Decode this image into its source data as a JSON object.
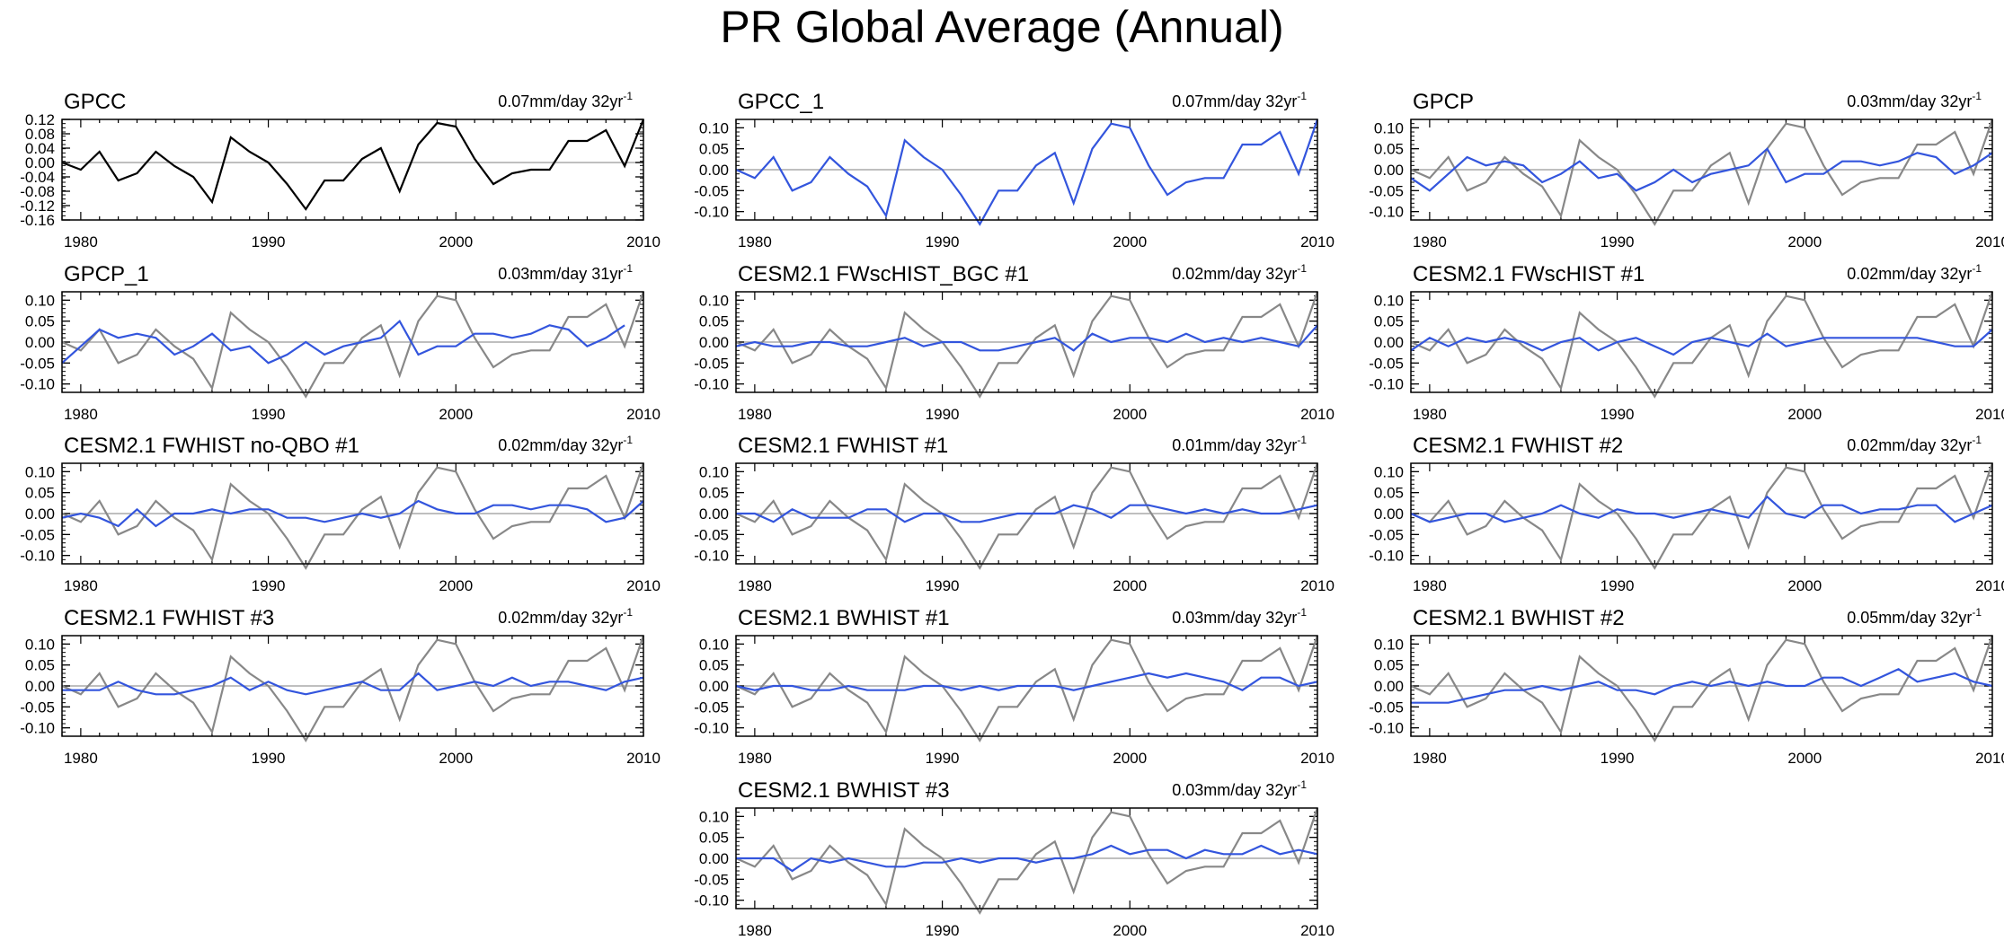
{
  "title": "PR Global Average (Annual)",
  "colors": {
    "reference": "#888888",
    "model": "#3355dd",
    "gpcc": "#000000",
    "zero_line": "#aaaaaa"
  },
  "chart_data": {
    "type": "line",
    "years": [
      1979,
      1980,
      1981,
      1982,
      1983,
      1984,
      1985,
      1986,
      1987,
      1988,
      1989,
      1990,
      1991,
      1992,
      1993,
      1994,
      1995,
      1996,
      1997,
      1998,
      1999,
      2000,
      2001,
      2002,
      2003,
      2004,
      2005,
      2006,
      2007,
      2008,
      2009,
      2010
    ],
    "xticks": [
      1980,
      1990,
      2000,
      2010
    ],
    "xlim": [
      1979,
      2010
    ],
    "reference_series": {
      "name": "GPCC",
      "values": [
        0.0,
        -0.02,
        0.03,
        -0.05,
        -0.03,
        0.03,
        -0.01,
        -0.04,
        -0.11,
        0.07,
        0.03,
        0.0,
        -0.06,
        -0.13,
        -0.05,
        -0.05,
        0.01,
        0.04,
        -0.08,
        0.05,
        0.11,
        0.1,
        0.01,
        -0.06,
        -0.03,
        -0.02,
        -0.02,
        0.06,
        0.06,
        0.09,
        -0.01,
        0.12
      ]
    },
    "panels": [
      {
        "name": "GPCC",
        "trend": "0.07mm/day 32yr",
        "trend_exp": "-1",
        "ylim": [
          -0.16,
          0.12
        ],
        "yticks": [
          "0.12",
          "0.08",
          "0.04",
          "0.00",
          "-0.04",
          "-0.08",
          "-0.12",
          "-0.16"
        ],
        "show_reference": false,
        "series_color": "gpcc",
        "values": [
          0.0,
          -0.02,
          0.03,
          -0.05,
          -0.03,
          0.03,
          -0.01,
          -0.04,
          -0.11,
          0.07,
          0.03,
          0.0,
          -0.06,
          -0.13,
          -0.05,
          -0.05,
          0.01,
          0.04,
          -0.08,
          0.05,
          0.11,
          0.1,
          0.01,
          -0.06,
          -0.03,
          -0.02,
          -0.02,
          0.06,
          0.06,
          0.09,
          -0.01,
          0.12
        ]
      },
      {
        "name": "GPCC_1",
        "trend": "0.07mm/day 32yr",
        "trend_exp": "-1",
        "ylim": [
          -0.12,
          0.12
        ],
        "yticks": [
          "0.10",
          "0.05",
          "0.00",
          "-0.05",
          "-0.10"
        ],
        "show_reference": false,
        "series_color": "model",
        "values": [
          0.0,
          -0.02,
          0.03,
          -0.05,
          -0.03,
          0.03,
          -0.01,
          -0.04,
          -0.11,
          0.07,
          0.03,
          0.0,
          -0.06,
          -0.13,
          -0.05,
          -0.05,
          0.01,
          0.04,
          -0.08,
          0.05,
          0.11,
          0.1,
          0.01,
          -0.06,
          -0.03,
          -0.02,
          -0.02,
          0.06,
          0.06,
          0.09,
          -0.01,
          0.12
        ]
      },
      {
        "name": "GPCP",
        "trend": "0.03mm/day 32yr",
        "trend_exp": "-1",
        "ylim": [
          -0.12,
          0.12
        ],
        "yticks": [
          "0.10",
          "0.05",
          "0.00",
          "-0.05",
          "-0.10"
        ],
        "show_reference": true,
        "series_color": "model",
        "values": [
          -0.02,
          -0.05,
          -0.01,
          0.03,
          0.01,
          0.02,
          0.01,
          -0.03,
          -0.01,
          0.02,
          -0.02,
          -0.01,
          -0.05,
          -0.03,
          0.0,
          -0.03,
          -0.01,
          0.0,
          0.01,
          0.05,
          -0.03,
          -0.01,
          -0.01,
          0.02,
          0.02,
          0.01,
          0.02,
          0.04,
          0.03,
          -0.01,
          0.01,
          0.04
        ]
      },
      {
        "name": "GPCP_1",
        "trend": "0.03mm/day 31yr",
        "trend_exp": "-1",
        "ylim": [
          -0.12,
          0.12
        ],
        "yticks": [
          "0.10",
          "0.05",
          "0.00",
          "-0.05",
          "-0.10"
        ],
        "show_reference": true,
        "series_color": "model",
        "values": [
          -0.05,
          -0.01,
          0.03,
          0.01,
          0.02,
          0.01,
          -0.03,
          -0.01,
          0.02,
          -0.02,
          -0.01,
          -0.05,
          -0.03,
          0.0,
          -0.03,
          -0.01,
          0.0,
          0.01,
          0.05,
          -0.03,
          -0.01,
          -0.01,
          0.02,
          0.02,
          0.01,
          0.02,
          0.04,
          0.03,
          -0.01,
          0.01,
          0.04
        ]
      },
      {
        "name": "CESM2.1 FWscHIST_BGC #1",
        "trend": "0.02mm/day 32yr",
        "trend_exp": "-1",
        "ylim": [
          -0.12,
          0.12
        ],
        "yticks": [
          "0.10",
          "0.05",
          "0.00",
          "-0.05",
          "-0.10"
        ],
        "show_reference": true,
        "series_color": "model",
        "values": [
          -0.01,
          0.0,
          -0.01,
          -0.01,
          0.0,
          0.0,
          -0.01,
          -0.01,
          0.0,
          0.01,
          -0.01,
          0.0,
          0.0,
          -0.02,
          -0.02,
          -0.01,
          0.0,
          0.01,
          -0.02,
          0.02,
          0.0,
          0.01,
          0.01,
          0.0,
          0.02,
          0.0,
          0.01,
          0.0,
          0.01,
          0.0,
          -0.01,
          0.04
        ]
      },
      {
        "name": "CESM2.1 FWscHIST #1",
        "trend": "0.02mm/day 32yr",
        "trend_exp": "-1",
        "ylim": [
          -0.12,
          0.12
        ],
        "yticks": [
          "0.10",
          "0.05",
          "0.00",
          "-0.05",
          "-0.10"
        ],
        "show_reference": true,
        "series_color": "model",
        "values": [
          -0.02,
          0.01,
          -0.01,
          0.01,
          0.0,
          0.01,
          0.0,
          -0.02,
          0.0,
          0.01,
          -0.02,
          0.0,
          0.01,
          -0.01,
          -0.03,
          0.0,
          0.01,
          0.0,
          -0.01,
          0.02,
          -0.01,
          0.0,
          0.01,
          0.01,
          0.01,
          0.01,
          0.01,
          0.01,
          0.0,
          -0.01,
          -0.01,
          0.03
        ]
      },
      {
        "name": "CESM2.1 FWHIST no-QBO #1",
        "trend": "0.02mm/day 32yr",
        "trend_exp": "-1",
        "ylim": [
          -0.12,
          0.12
        ],
        "yticks": [
          "0.10",
          "0.05",
          "0.00",
          "-0.05",
          "-0.10"
        ],
        "show_reference": true,
        "series_color": "model",
        "values": [
          -0.01,
          0.0,
          -0.01,
          -0.03,
          0.01,
          -0.03,
          0.0,
          0.0,
          0.01,
          0.0,
          0.01,
          0.01,
          -0.01,
          -0.01,
          -0.02,
          -0.01,
          0.0,
          -0.01,
          0.0,
          0.03,
          0.01,
          0.0,
          0.0,
          0.02,
          0.02,
          0.01,
          0.02,
          0.02,
          0.01,
          -0.02,
          -0.01,
          0.03
        ]
      },
      {
        "name": "CESM2.1 FWHIST #1",
        "trend": "0.01mm/day 32yr",
        "trend_exp": "-1",
        "ylim": [
          -0.12,
          0.12
        ],
        "yticks": [
          "0.10",
          "0.05",
          "0.00",
          "-0.05",
          "-0.10"
        ],
        "show_reference": true,
        "series_color": "model",
        "values": [
          0.0,
          0.0,
          -0.02,
          0.01,
          -0.01,
          -0.01,
          -0.01,
          0.01,
          0.01,
          -0.02,
          0.0,
          0.0,
          -0.02,
          -0.02,
          -0.01,
          0.0,
          0.0,
          0.0,
          0.02,
          0.01,
          -0.01,
          0.02,
          0.02,
          0.01,
          0.0,
          0.01,
          0.0,
          0.01,
          0.0,
          0.0,
          0.01,
          0.02
        ]
      },
      {
        "name": "CESM2.1 FWHIST #2",
        "trend": "0.02mm/day 32yr",
        "trend_exp": "-1",
        "ylim": [
          -0.12,
          0.12
        ],
        "yticks": [
          "0.10",
          "0.05",
          "0.00",
          "-0.05",
          "-0.10"
        ],
        "show_reference": true,
        "series_color": "model",
        "values": [
          0.0,
          -0.02,
          -0.01,
          0.0,
          0.0,
          -0.02,
          -0.01,
          0.0,
          0.02,
          0.0,
          -0.01,
          0.01,
          0.0,
          0.0,
          -0.01,
          0.0,
          0.01,
          0.0,
          -0.01,
          0.04,
          0.0,
          -0.01,
          0.02,
          0.02,
          0.0,
          0.01,
          0.01,
          0.02,
          0.02,
          -0.02,
          0.0,
          0.02
        ]
      },
      {
        "name": "CESM2.1 FWHIST #3",
        "trend": "0.02mm/day 32yr",
        "trend_exp": "-1",
        "ylim": [
          -0.12,
          0.12
        ],
        "yticks": [
          "0.10",
          "0.05",
          "0.00",
          "-0.05",
          "-0.10"
        ],
        "show_reference": true,
        "series_color": "model",
        "values": [
          -0.01,
          -0.01,
          -0.01,
          0.01,
          -0.01,
          -0.02,
          -0.02,
          -0.01,
          0.0,
          0.02,
          -0.01,
          0.01,
          -0.01,
          -0.02,
          -0.01,
          0.0,
          0.01,
          -0.01,
          -0.01,
          0.03,
          -0.01,
          0.0,
          0.01,
          0.0,
          0.02,
          0.0,
          0.01,
          0.01,
          0.0,
          -0.01,
          0.01,
          0.02
        ]
      },
      {
        "name": "CESM2.1 BWHIST #1",
        "trend": "0.03mm/day 32yr",
        "trend_exp": "-1",
        "ylim": [
          -0.12,
          0.12
        ],
        "yticks": [
          "0.10",
          "0.05",
          "0.00",
          "-0.05",
          "-0.10"
        ],
        "show_reference": true,
        "series_color": "model",
        "values": [
          0.0,
          -0.01,
          0.0,
          0.0,
          -0.01,
          -0.01,
          0.0,
          -0.01,
          -0.01,
          -0.01,
          0.0,
          0.0,
          -0.01,
          0.0,
          -0.01,
          0.0,
          0.0,
          0.0,
          -0.01,
          0.0,
          0.01,
          0.02,
          0.03,
          0.02,
          0.03,
          0.02,
          0.01,
          -0.01,
          0.02,
          0.02,
          0.0,
          0.01
        ]
      },
      {
        "name": "CESM2.1 BWHIST #2",
        "trend": "0.05mm/day 32yr",
        "trend_exp": "-1",
        "ylim": [
          -0.12,
          0.12
        ],
        "yticks": [
          "0.10",
          "0.05",
          "0.00",
          "-0.05",
          "-0.10"
        ],
        "show_reference": true,
        "series_color": "model",
        "values": [
          -0.04,
          -0.04,
          -0.04,
          -0.03,
          -0.02,
          -0.01,
          -0.01,
          0.0,
          -0.01,
          0.0,
          0.01,
          -0.01,
          -0.01,
          -0.02,
          0.0,
          0.01,
          0.0,
          0.01,
          0.0,
          0.01,
          0.0,
          0.0,
          0.02,
          0.02,
          0.0,
          0.02,
          0.04,
          0.01,
          0.02,
          0.03,
          0.01,
          0.0
        ]
      },
      {
        "name": "CESM2.1 BWHIST #3",
        "trend": "0.03mm/day 32yr",
        "trend_exp": "-1",
        "ylim": [
          -0.12,
          0.12
        ],
        "yticks": [
          "0.10",
          "0.05",
          "0.00",
          "-0.05",
          "-0.10"
        ],
        "show_reference": true,
        "series_color": "model",
        "values": [
          0.0,
          0.0,
          0.0,
          -0.03,
          0.0,
          -0.01,
          0.0,
          -0.01,
          -0.02,
          -0.02,
          -0.01,
          -0.01,
          0.0,
          -0.01,
          0.0,
          0.0,
          -0.01,
          0.0,
          0.0,
          0.01,
          0.03,
          0.01,
          0.02,
          0.02,
          0.0,
          0.02,
          0.01,
          0.01,
          0.03,
          0.01,
          0.02,
          0.01
        ]
      }
    ]
  }
}
